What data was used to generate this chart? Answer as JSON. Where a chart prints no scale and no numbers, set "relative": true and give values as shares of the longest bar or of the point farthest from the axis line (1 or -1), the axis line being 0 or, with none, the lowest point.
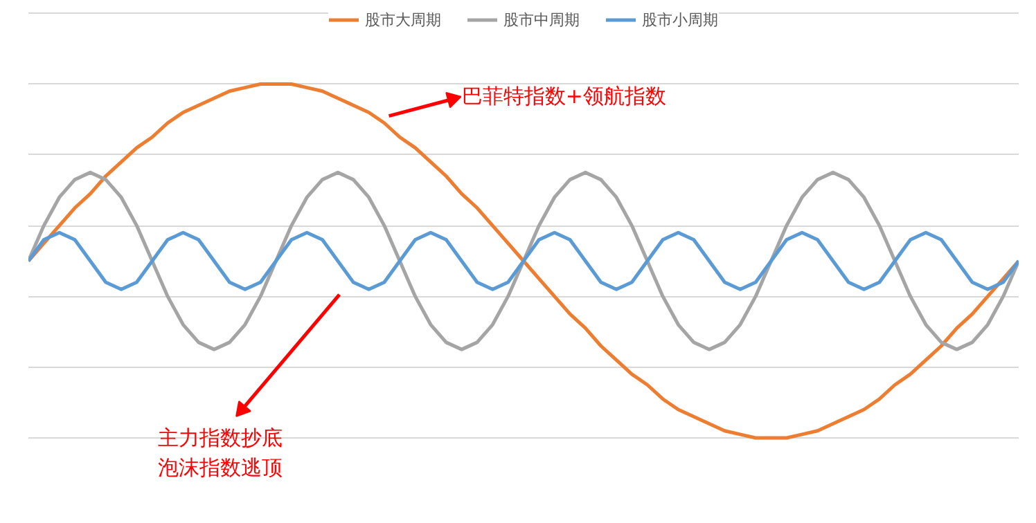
{
  "chart_data": {
    "type": "line",
    "relative": true,
    "grid": "y",
    "legend": "top",
    "line_style": "solid",
    "marker": "none",
    "categories": [
      null,
      null,
      null,
      null,
      null,
      null,
      null,
      null,
      null,
      null,
      null,
      null,
      null,
      null,
      null,
      null,
      null,
      null,
      null,
      null,
      null,
      null,
      null,
      null,
      null,
      null,
      null,
      null,
      null,
      null,
      null,
      null,
      null,
      null,
      null,
      null,
      null,
      null,
      null,
      null,
      null,
      null,
      null,
      null,
      null,
      null,
      null,
      null,
      null,
      null,
      null,
      null,
      null,
      null,
      null,
      null,
      null,
      null,
      null,
      null,
      null,
      null,
      null,
      null,
      null
    ],
    "series": [
      {
        "name": "股市大周期",
        "color": "#ed7d31",
        "values": [
          0.5,
          0.55,
          0.6,
          0.65,
          0.69,
          0.74,
          0.78,
          0.82,
          0.85,
          0.89,
          0.92,
          0.94,
          0.96,
          0.98,
          0.99,
          1,
          1,
          1,
          0.99,
          0.98,
          0.96,
          0.94,
          0.92,
          0.89,
          0.85,
          0.82,
          0.78,
          0.74,
          0.69,
          0.65,
          0.6,
          0.55,
          0.5,
          0.45,
          0.4,
          0.35,
          0.31,
          0.26,
          0.22,
          0.18,
          0.15,
          0.11,
          0.08,
          0.06,
          0.04,
          0.02,
          0.01,
          0,
          0,
          0,
          0.01,
          0.02,
          0.04,
          0.06,
          0.08,
          0.11,
          0.15,
          0.18,
          0.22,
          0.26,
          0.31,
          0.35,
          0.4,
          0.45,
          0.5
        ]
      },
      {
        "name": "股市中周期",
        "color": "#a5a5a5",
        "values": [
          0.5,
          0.6,
          0.68,
          0.73,
          0.75,
          0.73,
          0.68,
          0.6,
          0.5,
          0.4,
          0.32,
          0.27,
          0.25,
          0.27,
          0.32,
          0.4,
          0.5,
          0.6,
          0.68,
          0.73,
          0.75,
          0.73,
          0.68,
          0.6,
          0.5,
          0.4,
          0.32,
          0.27,
          0.25,
          0.27,
          0.32,
          0.4,
          0.5,
          0.6,
          0.68,
          0.73,
          0.75,
          0.73,
          0.68,
          0.6,
          0.5,
          0.4,
          0.32,
          0.27,
          0.25,
          0.27,
          0.32,
          0.4,
          0.5,
          0.6,
          0.68,
          0.73,
          0.75,
          0.73,
          0.68,
          0.6,
          0.5,
          0.4,
          0.32,
          0.27,
          0.25,
          0.27,
          0.32,
          0.4,
          0.5
        ]
      },
      {
        "name": "股市小周期",
        "color": "#5b9bd5",
        "values": [
          0.5,
          0.56,
          0.58,
          0.56,
          0.5,
          0.44,
          0.42,
          0.44,
          0.5,
          0.56,
          0.58,
          0.56,
          0.5,
          0.44,
          0.42,
          0.44,
          0.5,
          0.56,
          0.58,
          0.56,
          0.5,
          0.44,
          0.42,
          0.44,
          0.5,
          0.56,
          0.58,
          0.56,
          0.5,
          0.44,
          0.42,
          0.44,
          0.5,
          0.56,
          0.58,
          0.56,
          0.5,
          0.44,
          0.42,
          0.44,
          0.5,
          0.56,
          0.58,
          0.56,
          0.5,
          0.44,
          0.42,
          0.44,
          0.5,
          0.56,
          0.58,
          0.56,
          0.5,
          0.44,
          0.42,
          0.44,
          0.5,
          0.56,
          0.58,
          0.56,
          0.5,
          0.44,
          0.42,
          0.44,
          0.5
        ]
      }
    ],
    "annotations": [
      "巴菲特指数+领航指数",
      "主力指数抄底",
      "泡沫指数逃顶"
    ]
  }
}
